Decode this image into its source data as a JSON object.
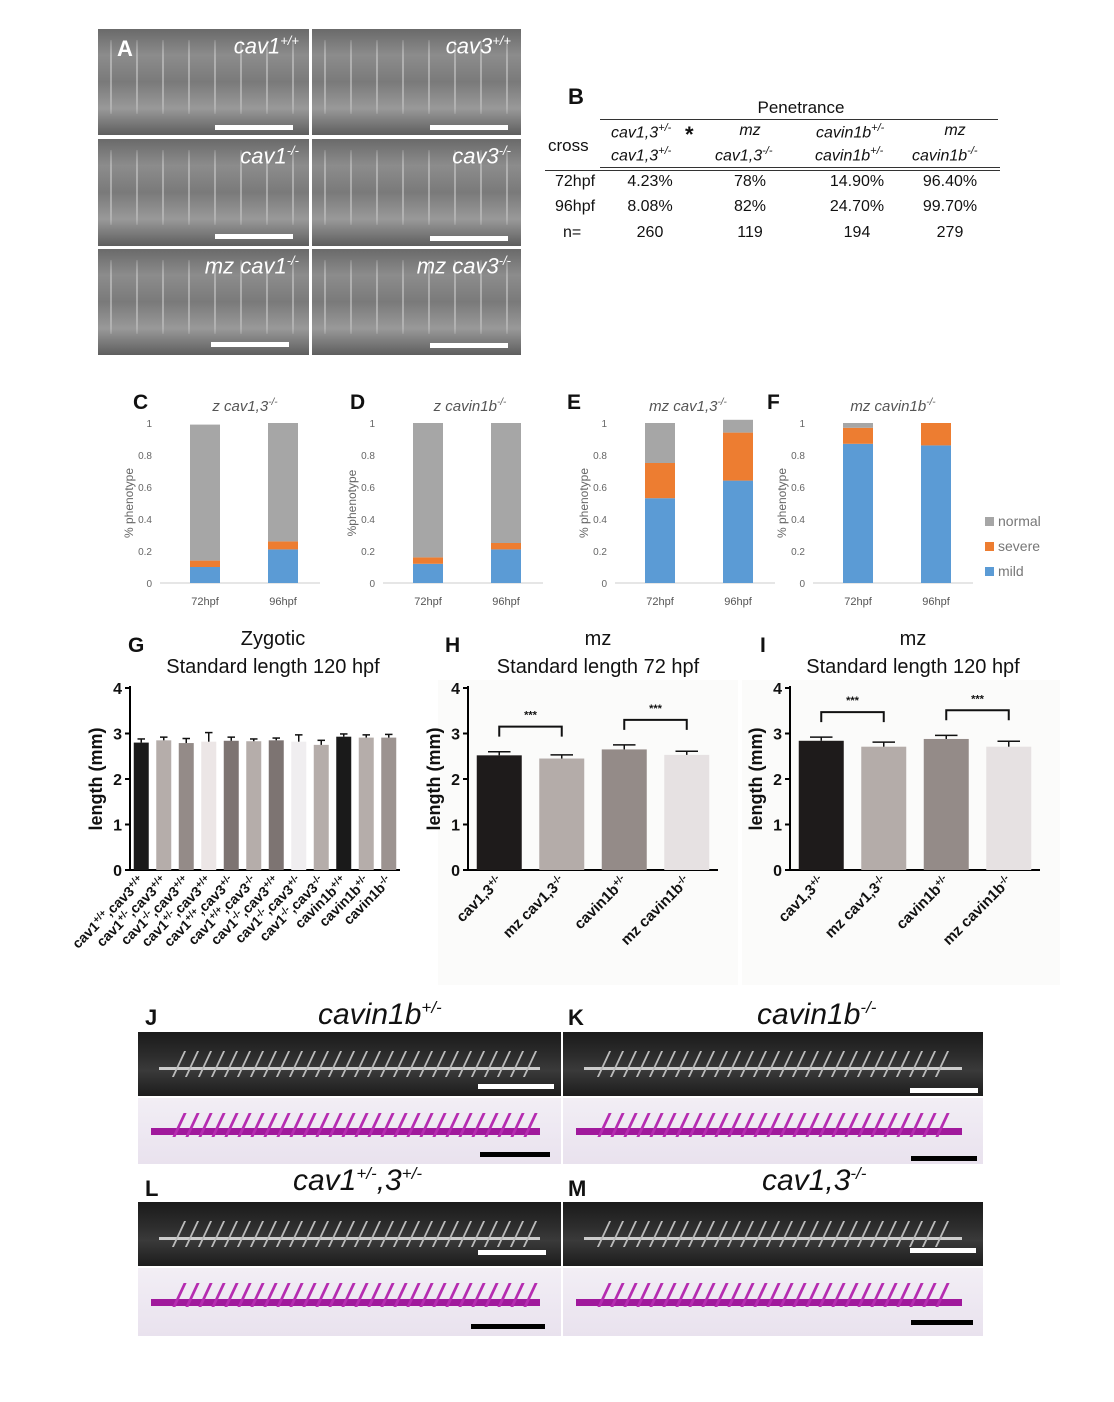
{
  "panel_a": {
    "letter": "A",
    "images": [
      {
        "label": "cav1",
        "sup": "+/+"
      },
      {
        "label": "cav3",
        "sup": "+/+"
      },
      {
        "label": "cav1",
        "sup": "-/-"
      },
      {
        "label": "cav3",
        "sup": "-/-"
      },
      {
        "label": "mz cav1",
        "sup": "-/-"
      },
      {
        "label": "mz cav3",
        "sup": "-/-"
      }
    ]
  },
  "panel_b": {
    "letter": "B",
    "title": "Penetrance",
    "cross_label": "cross",
    "asterisk": "*",
    "columns": [
      {
        "top": "cav1,3",
        "top_sup": "+/-",
        "bottom": "cav1,3",
        "bottom_sup": "+/-"
      },
      {
        "top": "mz",
        "top_sup": "",
        "bottom": "cav1,3",
        "bottom_sup": "-/-"
      },
      {
        "top": "cavin1b",
        "top_sup": "+/-",
        "bottom": "cavin1b",
        "bottom_sup": "+/-"
      },
      {
        "top": "mz",
        "top_sup": "",
        "bottom": "cavin1b",
        "bottom_sup": "-/-"
      }
    ],
    "rows": [
      {
        "label": "72hpf",
        "values": [
          "4.23%",
          "78%",
          "14.90%",
          "96.40%"
        ]
      },
      {
        "label": "96hpf",
        "values": [
          "8.08%",
          "82%",
          "24.70%",
          "99.70%"
        ]
      },
      {
        "label": "n=",
        "values": [
          "260",
          "119",
          "194",
          "279"
        ]
      }
    ]
  },
  "legend_cdef": {
    "normal": "normal",
    "severe": "severe",
    "mild": "mild"
  },
  "colors": {
    "normal": "#a6a6a6",
    "severe": "#ed7d31",
    "mild": "#5b9bd5",
    "scalebar_white": "#ffffff",
    "scalebar_black": "#000000"
  },
  "chart_data": [
    {
      "type": "bar",
      "stacked": true,
      "letter": "C",
      "title": "z cav1,3",
      "title_sup": "-/-",
      "ylabel": "% phenotype",
      "ylim": [
        0,
        1
      ],
      "yticks": [
        "0",
        "0.2",
        "0.4",
        "0.6",
        "0.8",
        "1"
      ],
      "categories": [
        "72hpf",
        "96hpf"
      ],
      "series": [
        {
          "name": "mild",
          "values": [
            0.1,
            0.21
          ]
        },
        {
          "name": "severe",
          "values": [
            0.04,
            0.05
          ]
        },
        {
          "name": "normal",
          "values": [
            0.85,
            0.74
          ]
        }
      ]
    },
    {
      "type": "bar",
      "stacked": true,
      "letter": "D",
      "title": "z cavin1b",
      "title_sup": "-/-",
      "ylabel": "%phenotype",
      "ylim": [
        0,
        1
      ],
      "yticks": [
        "0",
        "0.2",
        "0.4",
        "0.6",
        "0.8",
        "1"
      ],
      "categories": [
        "72hpf",
        "96hpf"
      ],
      "series": [
        {
          "name": "mild",
          "values": [
            0.12,
            0.21
          ]
        },
        {
          "name": "severe",
          "values": [
            0.04,
            0.04
          ]
        },
        {
          "name": "normal",
          "values": [
            0.84,
            0.75
          ]
        }
      ]
    },
    {
      "type": "bar",
      "stacked": true,
      "letter": "E",
      "title": "mz cav1,3",
      "title_sup": "-/-",
      "ylabel": "% phenotype",
      "ylim": [
        0,
        1
      ],
      "yticks": [
        "0",
        "0.2",
        "0.4",
        "0.6",
        "0.8",
        "1"
      ],
      "categories": [
        "72hpf",
        "96hpf"
      ],
      "series": [
        {
          "name": "mild",
          "values": [
            0.53,
            0.64
          ]
        },
        {
          "name": "severe",
          "values": [
            0.22,
            0.3
          ]
        },
        {
          "name": "normal",
          "values": [
            0.25,
            0.08
          ]
        }
      ]
    },
    {
      "type": "bar",
      "stacked": true,
      "letter": "F",
      "title": "mz cavin1b",
      "title_sup": "-/-",
      "ylabel": "% phenotype",
      "ylim": [
        0,
        1
      ],
      "yticks": [
        "0",
        "0.2",
        "0.4",
        "0.6",
        "0.8",
        "1"
      ],
      "categories": [
        "72hpf",
        "96hpf"
      ],
      "series": [
        {
          "name": "mild",
          "values": [
            0.87,
            0.86
          ]
        },
        {
          "name": "severe",
          "values": [
            0.1,
            0.14
          ]
        },
        {
          "name": "normal",
          "values": [
            0.03,
            0.0
          ]
        }
      ]
    },
    {
      "type": "bar",
      "letter": "G",
      "title": "Zygotic",
      "subtitle": "Standard length 120 hpf",
      "ylabel": "length (mm)",
      "ylim": [
        0,
        4
      ],
      "yticks": [
        "0",
        "1",
        "2",
        "3",
        "4"
      ],
      "categories": [
        {
          "base": "cav1",
          "sup": "+/+",
          "rest": ",cav3",
          "sup2": "+/+"
        },
        {
          "base": "cav1",
          "sup": "+/-",
          "rest": ",cav3",
          "sup2": "+/+"
        },
        {
          "base": "cav1",
          "sup": "-/-",
          "rest": ",cav3",
          "sup2": "+/+"
        },
        {
          "base": "cav1",
          "sup": "+/-",
          "rest": ",cav3",
          "sup2": "+/+"
        },
        {
          "base": "cav1",
          "sup": "+/+",
          "rest": ",cav3",
          "sup2": "+/-"
        },
        {
          "base": "cav1",
          "sup": "+/+",
          "rest": ",cav3",
          "sup2": "-/-"
        },
        {
          "base": "cav1",
          "sup": "-/-",
          "rest": ",cav3",
          "sup2": "+/+"
        },
        {
          "base": "cav1",
          "sup": "-/-",
          "rest": ",cav3",
          "sup2": "+/-"
        },
        {
          "base": "cav1",
          "sup": "-/-",
          "rest": ",cav3",
          "sup2": "-/-"
        },
        {
          "base": "cavin1b",
          "sup": "+/+",
          "rest": "",
          "sup2": ""
        },
        {
          "base": "cavin1b",
          "sup": "+/-",
          "rest": "",
          "sup2": ""
        },
        {
          "base": "cavin1b",
          "sup": "-/-",
          "rest": "",
          "sup2": ""
        }
      ],
      "values": [
        2.8,
        2.85,
        2.79,
        2.82,
        2.84,
        2.83,
        2.85,
        2.82,
        2.75,
        2.93,
        2.91,
        2.91
      ],
      "errors": [
        0.08,
        0.07,
        0.1,
        0.2,
        0.08,
        0.05,
        0.05,
        0.15,
        0.1,
        0.06,
        0.06,
        0.07
      ],
      "bar_colors": [
        "#1a1a1a",
        "#b5adaa",
        "#948b88",
        "#ece6e6",
        "#7d7472",
        "#b5adaa",
        "#7d7472",
        "#f0eef0",
        "#b5adaa",
        "#1a1a1a",
        "#b5adaa",
        "#9c9390"
      ]
    },
    {
      "type": "bar",
      "letter": "H",
      "title": "mz",
      "subtitle": "Standard length 72 hpf",
      "ylabel": "length (mm)",
      "ylim": [
        0,
        4
      ],
      "yticks": [
        "0",
        "1",
        "2",
        "3",
        "4"
      ],
      "categories": [
        {
          "base": "cav1,3",
          "sup": "+/-"
        },
        {
          "base": "mz cav1,3",
          "sup": "-/-"
        },
        {
          "base": "cavin1b",
          "sup": "+/-"
        },
        {
          "base": "mz cavin1b",
          "sup": "-/-"
        }
      ],
      "values": [
        2.52,
        2.45,
        2.65,
        2.53
      ],
      "errors": [
        0.08,
        0.08,
        0.1,
        0.08
      ],
      "bar_colors": [
        "#1e1b1b",
        "#b4aca9",
        "#948b88",
        "#e6e1e2"
      ],
      "significance": [
        {
          "pair": [
            0,
            1
          ],
          "label": "***"
        },
        {
          "pair": [
            2,
            3
          ],
          "label": "***"
        }
      ]
    },
    {
      "type": "bar",
      "letter": "I",
      "title": "mz",
      "subtitle": "Standard length 120 hpf",
      "ylabel": "length (mm)",
      "ylim": [
        0,
        4
      ],
      "yticks": [
        "0",
        "1",
        "2",
        "3",
        "4"
      ],
      "categories": [
        {
          "base": "cav1,3",
          "sup": "+/-"
        },
        {
          "base": "mz cav1,3",
          "sup": "-/-"
        },
        {
          "base": "cavin1b",
          "sup": "+/-"
        },
        {
          "base": "mz cavin1b",
          "sup": "-/-"
        }
      ],
      "values": [
        2.84,
        2.71,
        2.88,
        2.71
      ],
      "errors": [
        0.08,
        0.1,
        0.08,
        0.12
      ],
      "bar_colors": [
        "#1e1b1b",
        "#b4aca9",
        "#948b88",
        "#e6e1e2"
      ],
      "significance": [
        {
          "pair": [
            0,
            1
          ],
          "label": "***"
        },
        {
          "pair": [
            2,
            3
          ],
          "label": "***"
        }
      ]
    }
  ],
  "skeleton_panels": [
    {
      "letter": "J",
      "label": "cavin1b",
      "sup": "+/-"
    },
    {
      "letter": "K",
      "label": "cavin1b",
      "sup": "-/-"
    },
    {
      "letter": "L",
      "label": "cav1",
      "sup": "+/-",
      "label2": ",3",
      "sup2": "+/-"
    },
    {
      "letter": "M",
      "label": "cav1,3",
      "sup": "-/-"
    }
  ]
}
